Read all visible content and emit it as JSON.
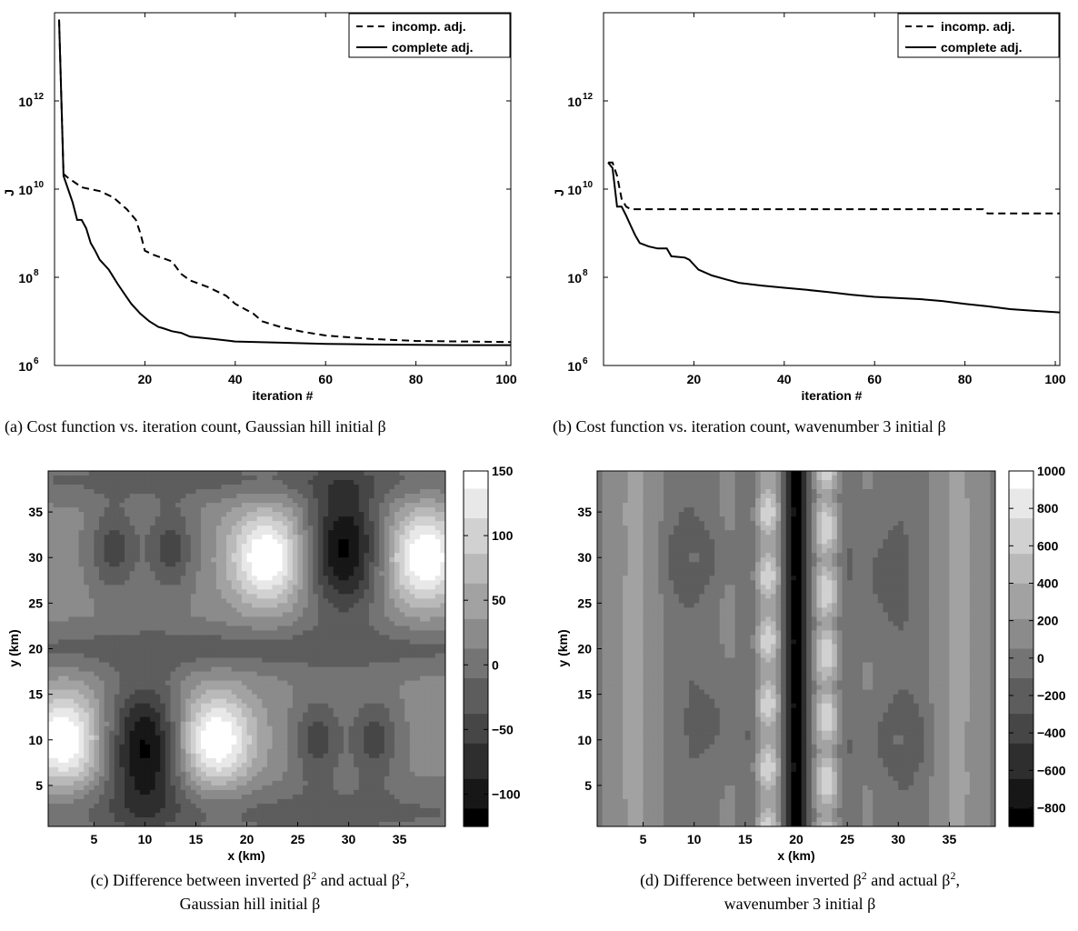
{
  "chart_data": [
    {
      "type": "line",
      "panel": "a",
      "xlabel": "iteration #",
      "ylabel": "J",
      "xlim": [
        0,
        101
      ],
      "ylim": [
        1000000,
        100000000000000
      ],
      "yscale": "log",
      "xticks": [
        "20",
        "40",
        "60",
        "80",
        "100"
      ],
      "yticks": [
        {
          "base": "10",
          "exp": "6"
        },
        {
          "base": "10",
          "exp": "8"
        },
        {
          "base": "10",
          "exp": "10"
        },
        {
          "base": "10",
          "exp": "12"
        }
      ],
      "legend": {
        "placement": "top-right"
      },
      "series": [
        {
          "name": "incomp. adj.",
          "dash": true,
          "x": [
            1,
            2,
            3,
            5,
            6,
            10,
            13,
            16,
            18,
            19,
            20,
            22,
            26,
            28,
            30,
            34,
            38,
            40,
            44,
            46,
            50,
            55,
            60,
            70,
            80,
            90,
            101
          ],
          "y": [
            70000000000000.0,
            22000000000.0,
            18000000000.0,
            13000000000.0,
            11000000000.0,
            9000000000.0,
            6500000000.0,
            3500000000.0,
            2000000000.0,
            1000000000.0,
            400000000.0,
            320000000.0,
            230000000.0,
            120000000.0,
            85000000.0,
            60000000.0,
            38000000.0,
            25000000.0,
            15000000.0,
            10000000.0,
            7500000.0,
            5800000.0,
            4800000.0,
            4000000.0,
            3600000.0,
            3500000.0,
            3400000.0
          ]
        },
        {
          "name": "complete adj.",
          "dash": false,
          "x": [
            1,
            2,
            3,
            4,
            5,
            6,
            7,
            8,
            9,
            10,
            12,
            14,
            16,
            17,
            19,
            21,
            23,
            24,
            26,
            28,
            30,
            35,
            40,
            50,
            60,
            70,
            80,
            90,
            101
          ],
          "y": [
            70000000000000.0,
            20000000000.0,
            10000000000.0,
            5000000000.0,
            2000000000.0,
            2000000000.0,
            1300000000.0,
            600000000.0,
            400000000.0,
            250000000.0,
            150000000.0,
            70000000.0,
            35000000.0,
            25000000.0,
            15000000.0,
            10000000.0,
            7500000.0,
            7000000.0,
            6000000.0,
            5500000.0,
            4500000.0,
            4000000.0,
            3500000.0,
            3300000.0,
            3100000.0,
            3000000.0,
            2950000.0,
            2900000.0,
            2900000.0
          ]
        }
      ]
    },
    {
      "type": "line",
      "panel": "b",
      "xlabel": "iteration #",
      "ylabel": "J",
      "xlim": [
        0,
        101
      ],
      "ylim": [
        1000000,
        100000000000000
      ],
      "yscale": "log",
      "xticks": [
        "20",
        "40",
        "60",
        "80",
        "100"
      ],
      "yticks": [
        {
          "base": "10",
          "exp": "6"
        },
        {
          "base": "10",
          "exp": "8"
        },
        {
          "base": "10",
          "exp": "10"
        },
        {
          "base": "10",
          "exp": "12"
        }
      ],
      "legend": {
        "placement": "top-right"
      },
      "series": [
        {
          "name": "incomp. adj.",
          "dash": true,
          "x": [
            1,
            2,
            3,
            4,
            5,
            6,
            8,
            20,
            40,
            60,
            84,
            85,
            101
          ],
          "y": [
            40000000000.0,
            40000000000.0,
            20000000000.0,
            6000000000.0,
            4000000000.0,
            3500000000.0,
            3500000000.0,
            3500000000.0,
            3500000000.0,
            3500000000.0,
            3500000000.0,
            2800000000.0,
            2800000000.0
          ]
        },
        {
          "name": "complete adj.",
          "dash": false,
          "x": [
            1,
            2,
            3,
            4,
            5,
            6,
            7,
            8,
            10,
            12,
            14,
            15,
            18,
            19,
            21,
            24,
            27,
            30,
            35,
            40,
            45,
            50,
            55,
            60,
            65,
            70,
            75,
            80,
            85,
            90,
            95,
            101
          ],
          "y": [
            40000000000.0,
            30000000000.0,
            4000000000.0,
            4000000000.0,
            2500000000.0,
            1500000000.0,
            900000000.0,
            600000000.0,
            500000000.0,
            450000000.0,
            450000000.0,
            300000000.0,
            280000000.0,
            250000000.0,
            150000000.0,
            110000000.0,
            90000000.0,
            75000000.0,
            65000000.0,
            58000000.0,
            52000000.0,
            46000000.0,
            40000000.0,
            36000000.0,
            34000000.0,
            32000000.0,
            29000000.0,
            25000000.0,
            22000000.0,
            19000000.0,
            17500000.0,
            16000000.0
          ]
        }
      ]
    },
    {
      "type": "heatmap",
      "panel": "c",
      "xlabel": "x (km)",
      "ylabel": "y (km)",
      "xlim": [
        0.5,
        39.5
      ],
      "ylim": [
        0.5,
        39.5
      ],
      "xticks": [
        "5",
        "10",
        "15",
        "20",
        "25",
        "30",
        "35"
      ],
      "yticks": [
        "5",
        "10",
        "15",
        "20",
        "25",
        "30",
        "35"
      ],
      "colorbar": {
        "ticks": [
          "150",
          "100",
          "50",
          "0",
          "−50",
          "−100"
        ],
        "vmin": -125,
        "vmax": 150
      },
      "grayscale": true,
      "field": "wavenumber-2 pattern: bright peaks near (2,10), (17,10), (22,30), (37,30); dark troughs near (10,9), (30,31); moderate lows near (7,31), (12,31), (27,10), (32,10)"
    },
    {
      "type": "heatmap",
      "panel": "d",
      "xlabel": "x (km)",
      "ylabel": "y (km)",
      "xlim": [
        0.5,
        39.5
      ],
      "ylim": [
        0.5,
        39.5
      ],
      "xticks": [
        "5",
        "10",
        "15",
        "20",
        "25",
        "30",
        "35"
      ],
      "yticks": [
        "5",
        "10",
        "15",
        "20",
        "25",
        "30",
        "35"
      ],
      "colorbar": {
        "ticks": [
          "1000",
          "800",
          "600",
          "400",
          "200",
          "0",
          "−200",
          "−400",
          "−600",
          "−800"
        ],
        "vmin": -900,
        "vmax": 1000
      },
      "grayscale": true,
      "field": "dark vertical band near x = 20, bright bands near x = 17 and x = 23, rings near (10,30) and (30,10), banded structure elsewhere"
    }
  ],
  "captions": {
    "a": {
      "label": "(a)",
      "text": "Cost function vs. iteration count, Gaussian hill initial",
      "symbol": "β"
    },
    "b": {
      "label": "(b)",
      "text": "Cost function vs. iteration count, wavenumber 3 initial",
      "symbol": "β"
    },
    "c": {
      "label": "(c)",
      "line1_pre": "Difference between inverted ",
      "line1_mid": " and actual ",
      "line2": "Gaussian hill initial",
      "symbol": "β"
    },
    "d": {
      "label": "(d)",
      "line1_pre": "Difference between inverted ",
      "line1_mid": " and actual ",
      "line2": "wavenumber 3 initial",
      "symbol": "β"
    }
  },
  "legend_labels": [
    "incomp. adj.",
    "complete adj."
  ],
  "xlabel_iter": "iteration #",
  "ylabel_J": "J",
  "xlabel_x": "x (km)",
  "ylabel_y": "y (km)"
}
